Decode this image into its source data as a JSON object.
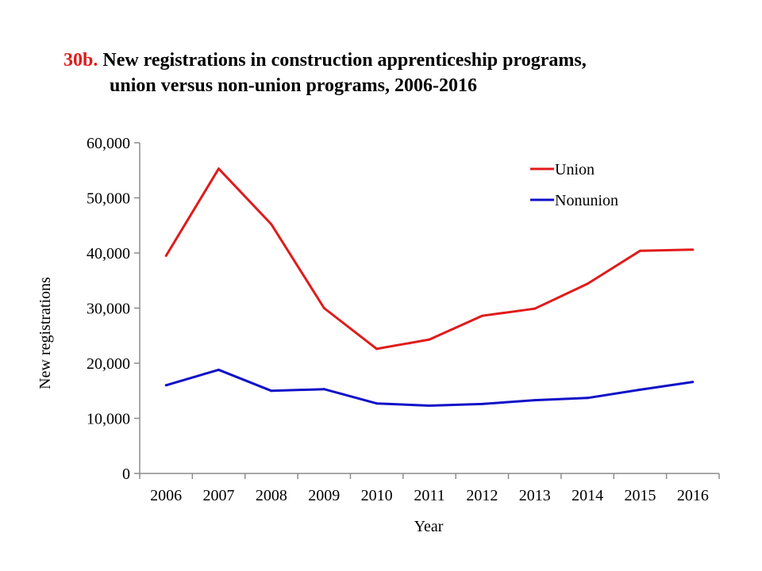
{
  "title": {
    "prefix": "30b.",
    "line1": "New registrations in construction apprenticeship programs,",
    "line2": "union versus non-union programs, 2006-2016"
  },
  "colors": {
    "prefix": "#e01b1b",
    "union": "#e01b1b",
    "nonunion": "#1010c8",
    "axis": "#8c8c8c"
  },
  "chart_data": {
    "type": "line",
    "title": "New registrations in construction apprenticeship programs, union versus non-union programs, 2006-2016",
    "xlabel": "Year",
    "ylabel": "New registrations",
    "x": [
      "2006",
      "2007",
      "2008",
      "2009",
      "2010",
      "2011",
      "2012",
      "2013",
      "2014",
      "2015",
      "2016"
    ],
    "ylim": [
      0,
      60000
    ],
    "yticks": [
      0,
      10000,
      20000,
      30000,
      40000,
      50000,
      60000
    ],
    "ytick_labels": [
      "0",
      "10,000",
      "20,000",
      "30,000",
      "40,000",
      "50,000",
      "60,000"
    ],
    "grid": false,
    "legend": "top-right",
    "series": [
      {
        "name": "Union",
        "color": "#e01b1b",
        "values": [
          39500,
          55300,
          45200,
          30000,
          22600,
          24300,
          28600,
          29900,
          34400,
          40400,
          40600
        ]
      },
      {
        "name": "Nonunion",
        "color": "#1010c8",
        "values": [
          16000,
          18800,
          15000,
          15300,
          12700,
          12300,
          12600,
          13300,
          13700,
          15200,
          16600
        ]
      }
    ]
  }
}
